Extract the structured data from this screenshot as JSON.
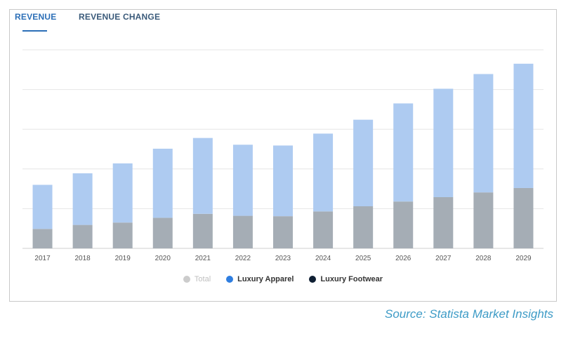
{
  "tabs": [
    {
      "label": "REVENUE",
      "active": true
    },
    {
      "label": "REVENUE CHANGE",
      "active": false
    }
  ],
  "legend": [
    {
      "label": "Total",
      "color": "#cccccc"
    },
    {
      "label": "Luxury Apparel",
      "color": "#2f7ee0"
    },
    {
      "label": "Luxury Footwear",
      "color": "#0f1f33"
    }
  ],
  "source": "Source: Statista Market Insights",
  "chart_data": {
    "type": "bar",
    "stacked": true,
    "categories": [
      "2017",
      "2018",
      "2019",
      "2020",
      "2021",
      "2022",
      "2023",
      "2024",
      "2025",
      "2026",
      "2027",
      "2028",
      "2029"
    ],
    "series": [
      {
        "name": "Luxury Footwear",
        "color": "#a5adb5",
        "values": [
          0.49,
          0.59,
          0.65,
          0.77,
          0.87,
          0.82,
          0.81,
          0.93,
          1.06,
          1.18,
          1.29,
          1.41,
          1.52
        ]
      },
      {
        "name": "Luxury Apparel",
        "color": "#aecbf1",
        "values": [
          1.11,
          1.3,
          1.49,
          1.74,
          1.91,
          1.79,
          1.78,
          1.96,
          2.18,
          2.47,
          2.73,
          2.98,
          3.13
        ]
      }
    ],
    "ylim": [
      0,
      5
    ],
    "grid": true,
    "legend_position": "bottom"
  }
}
